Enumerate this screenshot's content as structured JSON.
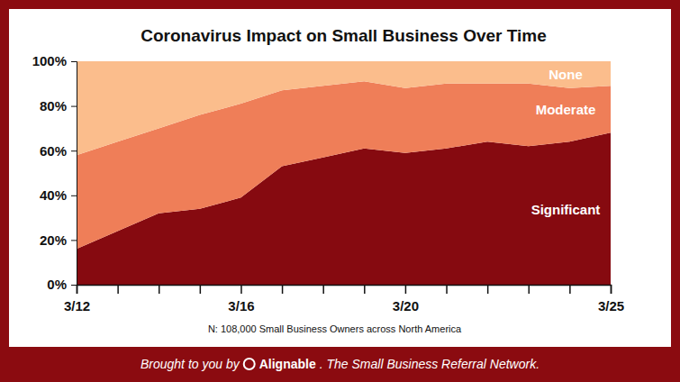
{
  "chart_data": {
    "type": "area",
    "title": "Coronavirus Impact on Small Business Over Time",
    "stacked": true,
    "categories": [
      "3/12",
      null,
      null,
      null,
      "3/16",
      null,
      null,
      null,
      "3/20",
      null,
      null,
      null,
      null,
      "3/25"
    ],
    "series": [
      {
        "name": "Significant",
        "color": "#860a10",
        "values": [
          16,
          24,
          32,
          34,
          39,
          53,
          57,
          61,
          59,
          61,
          64,
          62,
          64,
          68
        ]
      },
      {
        "name": "Moderate",
        "color": "#ef7e58",
        "values": [
          42,
          40,
          38,
          42,
          42,
          34,
          32,
          30,
          29,
          29,
          26,
          28,
          24,
          21
        ]
      },
      {
        "name": "None",
        "color": "#fbbd8c",
        "values": [
          42,
          36,
          30,
          24,
          19,
          13,
          11,
          9,
          12,
          10,
          10,
          10,
          12,
          11
        ]
      }
    ],
    "ylim": [
      0,
      100
    ],
    "yticks": [
      {
        "value": 0,
        "label": "0%"
      },
      {
        "value": 20,
        "label": "20%"
      },
      {
        "value": 40,
        "label": "40%"
      },
      {
        "value": 60,
        "label": "60%"
      },
      {
        "value": 80,
        "label": "80%"
      },
      {
        "value": 100,
        "label": "100%"
      }
    ],
    "grid": false,
    "note": "N: 108,000 Small Business Owners across North America"
  },
  "footer": {
    "prefix": "Brought to you by",
    "brand": "Alignable",
    "suffix": ". The Small Business Referral Network."
  }
}
